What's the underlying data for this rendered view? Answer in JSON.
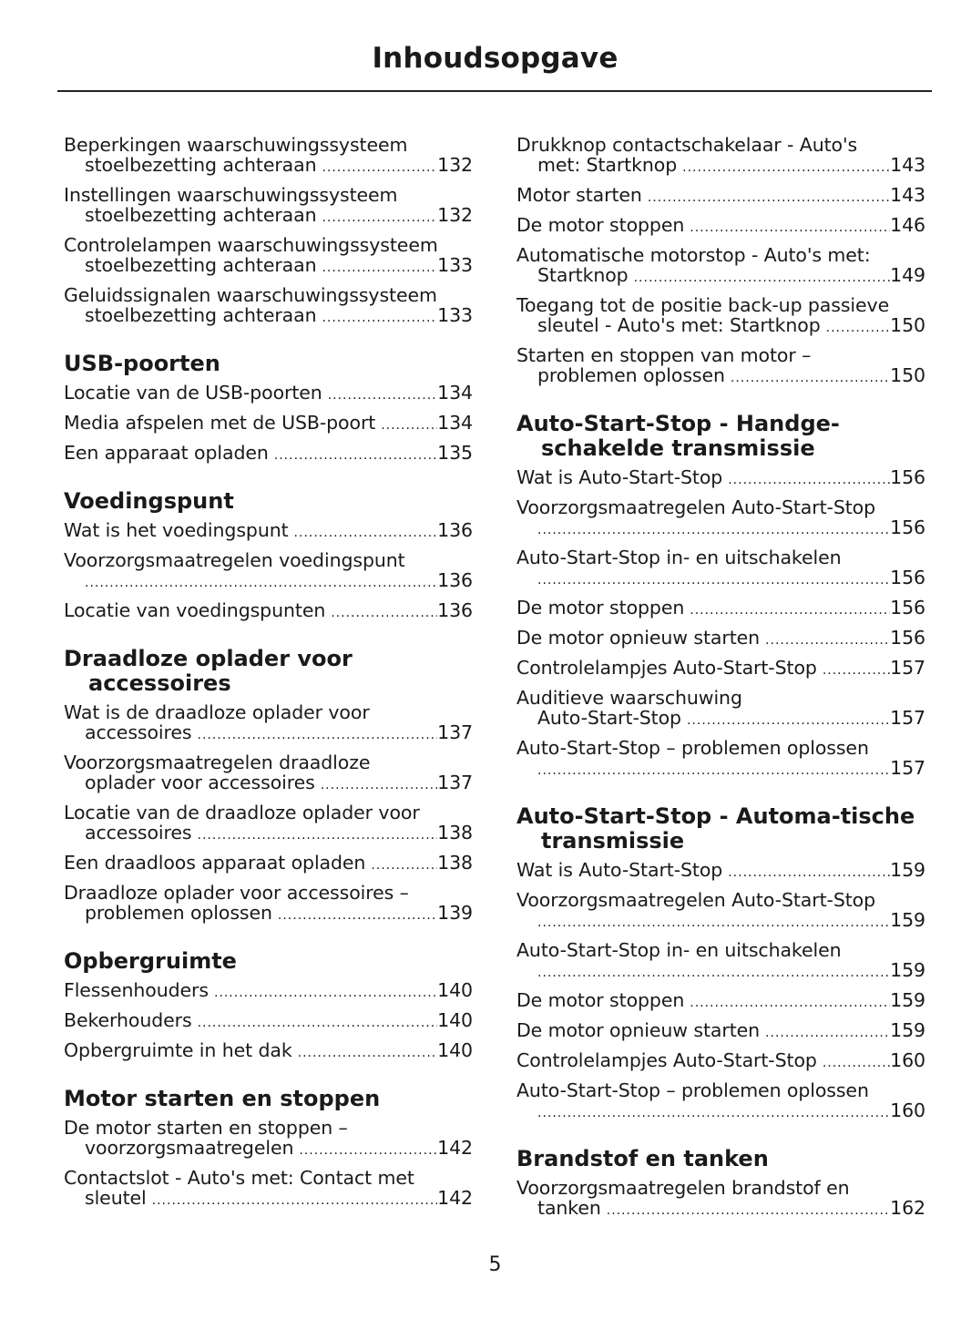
{
  "header": {
    "title": "Inhoudsopgave"
  },
  "columns": [
    [
      {
        "heading": null,
        "entries": [
          {
            "lines": [
              "Beperkingen waarschuwingssysteem",
              "stoelbezetting achteraan"
            ],
            "page": "132"
          },
          {
            "lines": [
              "Instellingen waarschuwingssysteem",
              "stoelbezetting achteraan"
            ],
            "page": "132"
          },
          {
            "lines": [
              "Controlelampen waarschuwingssysteem",
              "stoelbezetting achteraan"
            ],
            "page": "133"
          },
          {
            "lines": [
              "Geluidssignalen waarschuwingssysteem",
              "stoelbezetting achteraan"
            ],
            "page": "133"
          }
        ]
      },
      {
        "heading": "USB-poorten",
        "entries": [
          {
            "lines": [
              "Locatie van de USB-poorten"
            ],
            "page": "134"
          },
          {
            "lines": [
              "Media afspelen met de USB-poort"
            ],
            "page": "134"
          },
          {
            "lines": [
              "Een apparaat opladen"
            ],
            "page": "135"
          }
        ]
      },
      {
        "heading": "Voedingspunt",
        "entries": [
          {
            "lines": [
              "Wat is het voedingspunt"
            ],
            "page": "136"
          },
          {
            "lines": [
              "Voorzorgsmaatregelen voedingspunt",
              ""
            ],
            "page": "136"
          },
          {
            "lines": [
              "Locatie van voedingspunten"
            ],
            "page": "136"
          }
        ]
      },
      {
        "heading": "Draadloze oplader voor accessoires",
        "entries": [
          {
            "lines": [
              "Wat is de draadloze oplader voor",
              "accessoires"
            ],
            "page": "137"
          },
          {
            "lines": [
              "Voorzorgsmaatregelen draadloze",
              "oplader voor accessoires"
            ],
            "page": "137"
          },
          {
            "lines": [
              "Locatie van de draadloze oplader voor",
              "accessoires"
            ],
            "page": "138"
          },
          {
            "lines": [
              "Een draadloos apparaat opladen"
            ],
            "page": "138"
          },
          {
            "lines": [
              "Draadloze oplader voor accessoires –",
              "problemen oplossen"
            ],
            "page": "139"
          }
        ]
      },
      {
        "heading": "Opbergruimte",
        "entries": [
          {
            "lines": [
              "Flessenhouders"
            ],
            "page": "140"
          },
          {
            "lines": [
              "Bekerhouders"
            ],
            "page": "140"
          },
          {
            "lines": [
              "Opbergruimte in het dak"
            ],
            "page": "140"
          }
        ]
      },
      {
        "heading": "Motor starten en stoppen",
        "entries": [
          {
            "lines": [
              "De motor starten en stoppen –",
              "voorzorgsmaatregelen"
            ],
            "page": "142"
          },
          {
            "lines": [
              "Contactslot - Auto's met: Contact met",
              "sleutel"
            ],
            "page": "142"
          }
        ]
      }
    ],
    [
      {
        "heading": null,
        "entries": [
          {
            "lines": [
              "Drukknop contactschakelaar - Auto's",
              "met: Startknop"
            ],
            "page": "143"
          },
          {
            "lines": [
              "Motor starten"
            ],
            "page": "143"
          },
          {
            "lines": [
              "De motor stoppen"
            ],
            "page": "146"
          },
          {
            "lines": [
              "Automatische motorstop - Auto's met:",
              "Startknop"
            ],
            "page": "149"
          },
          {
            "lines": [
              "Toegang tot de positie back-up passieve",
              "sleutel - Auto's met: Startknop"
            ],
            "page": "150"
          },
          {
            "lines": [
              "Starten en stoppen van motor –",
              "problemen oplossen"
            ],
            "page": "150"
          }
        ]
      },
      {
        "heading": "Auto-Start-Stop - Handge-schakelde transmissie",
        "entries": [
          {
            "lines": [
              "Wat is Auto-Start-Stop"
            ],
            "page": "156"
          },
          {
            "lines": [
              "Voorzorgsmaatregelen Auto-Start-Stop",
              ""
            ],
            "page": "156"
          },
          {
            "lines": [
              "Auto-Start-Stop in- en uitschakelen",
              ""
            ],
            "page": "156"
          },
          {
            "lines": [
              "De motor stoppen"
            ],
            "page": "156"
          },
          {
            "lines": [
              "De motor opnieuw starten"
            ],
            "page": "156"
          },
          {
            "lines": [
              "Controlelampjes Auto-Start-Stop"
            ],
            "page": "157"
          },
          {
            "lines": [
              "Auditieve waarschuwing",
              "Auto-Start-Stop"
            ],
            "page": "157"
          },
          {
            "lines": [
              "Auto-Start-Stop – problemen oplossen",
              ""
            ],
            "page": "157"
          }
        ]
      },
      {
        "heading": "Auto-Start-Stop - Automa-tische transmissie",
        "entries": [
          {
            "lines": [
              "Wat is Auto-Start-Stop"
            ],
            "page": "159"
          },
          {
            "lines": [
              "Voorzorgsmaatregelen Auto-Start-Stop",
              ""
            ],
            "page": "159"
          },
          {
            "lines": [
              "Auto-Start-Stop in- en uitschakelen",
              ""
            ],
            "page": "159"
          },
          {
            "lines": [
              "De motor stoppen"
            ],
            "page": "159"
          },
          {
            "lines": [
              "De motor opnieuw starten"
            ],
            "page": "159"
          },
          {
            "lines": [
              "Controlelampjes Auto-Start-Stop"
            ],
            "page": "160"
          },
          {
            "lines": [
              "Auto-Start-Stop – problemen oplossen",
              ""
            ],
            "page": "160"
          }
        ]
      },
      {
        "heading": "Brandstof en tanken",
        "entries": [
          {
            "lines": [
              "Voorzorgsmaatregelen brandstof en",
              "tanken"
            ],
            "page": "162"
          }
        ]
      }
    ]
  ],
  "footer": {
    "page_number": "5"
  }
}
